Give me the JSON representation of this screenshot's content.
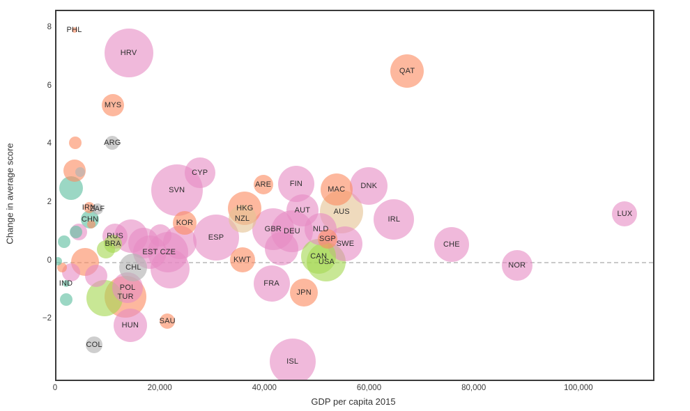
{
  "chart_data": {
    "type": "scatter",
    "subtype": "bubble",
    "title": "",
    "xlabel": "GDP per capita 2015",
    "ylabel": "Change in average score",
    "x_range": [
      0,
      114000
    ],
    "y_range": [
      -4.05,
      8.6
    ],
    "x_ticks": {
      "values": [
        0,
        20000,
        40000,
        60000,
        80000,
        100000
      ],
      "labels": [
        "0",
        "20,000",
        "40,000",
        "60,000",
        "80,000",
        "100,000"
      ]
    },
    "y_ticks": {
      "values": [
        -2,
        0,
        2,
        4,
        6,
        8
      ],
      "labels": [
        "−2",
        "0",
        "2",
        "4",
        "6",
        "8"
      ]
    },
    "grid": false,
    "legend": false,
    "zero_line": {
      "y": 0,
      "style": "dashed",
      "color": "#c9c9c9"
    },
    "size_unit": "rendered bubble radius in px",
    "palette": {
      "pink": "rgba(230,138,195,0.60)",
      "orange": "rgba(252,141,98,0.62)",
      "teal": "rgba(102,194,165,0.65)",
      "lightgreen": "rgba(166,216,84,0.62)",
      "gray": "rgba(179,179,179,0.65)",
      "tan": "rgba(229,196,148,0.62)"
    },
    "points": [
      {
        "label": "PHL",
        "x": 3400,
        "y": 7.95,
        "r": 4,
        "group": "orange"
      },
      {
        "label": "HRV",
        "x": 13800,
        "y": 7.17,
        "r": 35,
        "group": "pink"
      },
      {
        "label": "QAT",
        "x": 67000,
        "y": 6.55,
        "r": 24,
        "group": "orange"
      },
      {
        "label": "MYS",
        "x": 10800,
        "y": 5.36,
        "r": 16,
        "group": "orange"
      },
      {
        "label": "ARG",
        "x": 10700,
        "y": 4.07,
        "r": 10,
        "group": "gray"
      },
      {
        "label": "CYP",
        "x": 27400,
        "y": 3.05,
        "r": 22,
        "group": "pink"
      },
      {
        "label": "SVN",
        "x": 23000,
        "y": 2.45,
        "r": 37,
        "group": "pink"
      },
      {
        "label": "ARE",
        "x": 39500,
        "y": 2.64,
        "r": 14,
        "group": "orange"
      },
      {
        "label": "FIN",
        "x": 45800,
        "y": 2.67,
        "r": 26,
        "group": "pink"
      },
      {
        "label": "MAC",
        "x": 53500,
        "y": 2.48,
        "r": 23,
        "group": "orange"
      },
      {
        "label": "DNK",
        "x": 59700,
        "y": 2.6,
        "r": 27,
        "group": "pink"
      },
      {
        "label": "IRN",
        "x": 6200,
        "y": 1.86,
        "r": 8,
        "group": "orange"
      },
      {
        "label": "ZAF",
        "x": 7800,
        "y": 1.81,
        "r": 8,
        "group": "gray"
      },
      {
        "label": "CHN",
        "x": 6400,
        "y": 1.45,
        "r": 13,
        "group": "teal"
      },
      {
        "label": "KOR",
        "x": 24500,
        "y": 1.33,
        "r": 17,
        "group": "orange"
      },
      {
        "label": "HKG",
        "x": 36000,
        "y": 1.83,
        "r": 24,
        "group": "orange"
      },
      {
        "label": "NZL",
        "x": 35500,
        "y": 1.48,
        "r": 20,
        "group": "tan"
      },
      {
        "label": "AUT",
        "x": 47000,
        "y": 1.76,
        "r": 23,
        "group": "pink"
      },
      {
        "label": "AUS",
        "x": 54500,
        "y": 1.71,
        "r": 31,
        "group": "tan"
      },
      {
        "label": "IRL",
        "x": 64500,
        "y": 1.45,
        "r": 29,
        "group": "pink"
      },
      {
        "label": "LUX",
        "x": 108600,
        "y": 1.64,
        "r": 18,
        "group": "pink"
      },
      {
        "label": "RUS",
        "x": 11200,
        "y": 0.88,
        "r": 18,
        "group": "pink"
      },
      {
        "label": "BRA",
        "x": 10800,
        "y": 0.62,
        "r": 13,
        "group": "lightgreen"
      },
      {
        "label": "ESP",
        "x": 30500,
        "y": 0.83,
        "r": 33,
        "group": "pink"
      },
      {
        "label": "GBR",
        "x": 41400,
        "y": 1.12,
        "r": 30,
        "group": "pink"
      },
      {
        "label": "DEU",
        "x": 45000,
        "y": 1.05,
        "r": 30,
        "group": "pink"
      },
      {
        "label": "NLD",
        "x": 50500,
        "y": 1.12,
        "r": 23,
        "group": "pink"
      },
      {
        "label": "SGP",
        "x": 51800,
        "y": 0.79,
        "r": 14,
        "group": "orange"
      },
      {
        "label": "SWE",
        "x": 55200,
        "y": 0.62,
        "r": 25,
        "group": "pink"
      },
      {
        "label": "CHE",
        "x": 75500,
        "y": 0.6,
        "r": 25,
        "group": "pink"
      },
      {
        "label": "EST",
        "x": 17900,
        "y": 0.33,
        "r": 24,
        "group": "pink"
      },
      {
        "label": "CZE",
        "x": 21300,
        "y": 0.33,
        "r": 29,
        "group": "pink"
      },
      {
        "label": "CAN",
        "x": 50100,
        "y": 0.19,
        "r": 25,
        "group": "lightgreen"
      },
      {
        "label": "USA",
        "x": 51600,
        "y": 0.0,
        "r": 28,
        "group": "lightgreen"
      },
      {
        "label": "KWT",
        "x": 35500,
        "y": 0.07,
        "r": 18,
        "group": "orange"
      },
      {
        "label": "NOR",
        "x": 88000,
        "y": -0.14,
        "r": 22,
        "group": "pink"
      },
      {
        "label": "CHL",
        "x": 14700,
        "y": -0.21,
        "r": 20,
        "group": "gray"
      },
      {
        "label": "IND",
        "x": 1800,
        "y": -0.74,
        "r": 5,
        "group": "teal"
      },
      {
        "label": "POL",
        "x": 13600,
        "y": -0.9,
        "r": 22,
        "group": "pink"
      },
      {
        "label": "TUR",
        "x": 13200,
        "y": -1.21,
        "r": 30,
        "group": "orange"
      },
      {
        "label": "FRA",
        "x": 41100,
        "y": -0.74,
        "r": 26,
        "group": "pink"
      },
      {
        "label": "JPN",
        "x": 47300,
        "y": -1.07,
        "r": 20,
        "group": "orange"
      },
      {
        "label": "SAU",
        "x": 21200,
        "y": -2.05,
        "r": 11,
        "group": "orange"
      },
      {
        "label": "HUN",
        "x": 14100,
        "y": -2.19,
        "r": 24,
        "group": "pink"
      },
      {
        "label": "COL",
        "x": 7200,
        "y": -2.86,
        "r": 12,
        "group": "gray"
      },
      {
        "label": "ISL",
        "x": 45100,
        "y": -3.43,
        "r": 33,
        "group": "pink"
      },
      {
        "label": "",
        "x": 3600,
        "y": 4.07,
        "r": 9,
        "group": "orange"
      },
      {
        "label": "",
        "x": 3400,
        "y": 3.12,
        "r": 16,
        "group": "orange"
      },
      {
        "label": "",
        "x": 4500,
        "y": 3.07,
        "r": 7,
        "group": "gray"
      },
      {
        "label": "",
        "x": 2800,
        "y": 2.52,
        "r": 17,
        "group": "teal"
      },
      {
        "label": "",
        "x": 6600,
        "y": 1.29,
        "r": 6,
        "group": "orange"
      },
      {
        "label": "",
        "x": 3700,
        "y": 1.02,
        "r": 9,
        "group": "teal"
      },
      {
        "label": "",
        "x": 4200,
        "y": 1.02,
        "r": 12,
        "group": "pink"
      },
      {
        "label": "",
        "x": 1400,
        "y": 0.69,
        "r": 9,
        "group": "teal"
      },
      {
        "label": "",
        "x": 9500,
        "y": 0.43,
        "r": 13,
        "group": "lightgreen"
      },
      {
        "label": "",
        "x": 300,
        "y": 0.02,
        "r": 6,
        "group": "teal"
      },
      {
        "label": "",
        "x": 1100,
        "y": -0.21,
        "r": 7,
        "group": "orange"
      },
      {
        "label": "",
        "x": 2800,
        "y": -0.36,
        "r": 13,
        "group": "pink"
      },
      {
        "label": "",
        "x": 5500,
        "y": -0.02,
        "r": 20,
        "group": "orange"
      },
      {
        "label": "",
        "x": 7600,
        "y": -0.48,
        "r": 16,
        "group": "pink"
      },
      {
        "label": "",
        "x": 1800,
        "y": -1.31,
        "r": 9,
        "group": "teal"
      },
      {
        "label": "",
        "x": 9200,
        "y": -1.26,
        "r": 26,
        "group": "lightgreen"
      },
      {
        "label": "",
        "x": 16700,
        "y": 0.64,
        "r": 22,
        "group": "pink"
      },
      {
        "label": "",
        "x": 23600,
        "y": 0.67,
        "r": 24,
        "group": "pink"
      },
      {
        "label": "",
        "x": 21700,
        "y": -0.24,
        "r": 28,
        "group": "pink"
      },
      {
        "label": "",
        "x": 14200,
        "y": 0.88,
        "r": 24,
        "group": "pink"
      },
      {
        "label": "",
        "x": 19800,
        "y": 0.9,
        "r": 16,
        "group": "pink"
      },
      {
        "label": "",
        "x": 43000,
        "y": 0.45,
        "r": 24,
        "group": "pink"
      }
    ]
  }
}
